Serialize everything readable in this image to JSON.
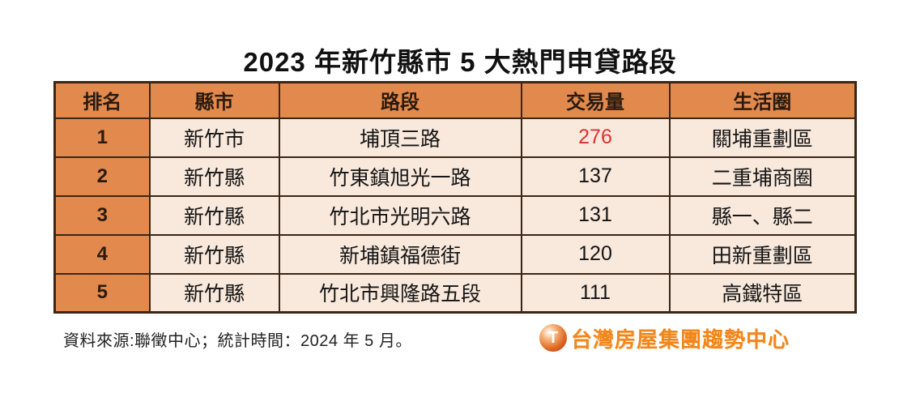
{
  "title": "2023 年新竹縣市 5 大熱門申貸路段",
  "table": {
    "headers": [
      "排名",
      "縣市",
      "路段",
      "交易量",
      "生活圈"
    ],
    "rows": [
      {
        "rank": "1",
        "county": "新竹市",
        "road": "埔頂三路",
        "volume": "276",
        "area": "關埔重劃區",
        "volume_highlight": true
      },
      {
        "rank": "2",
        "county": "新竹縣",
        "road": "竹東鎮旭光一路",
        "volume": "137",
        "area": "二重埔商圈",
        "volume_highlight": false
      },
      {
        "rank": "3",
        "county": "新竹縣",
        "road": "竹北市光明六路",
        "volume": "131",
        "area": "縣一、縣二",
        "volume_highlight": false
      },
      {
        "rank": "4",
        "county": "新竹縣",
        "road": "新埔鎮福德街",
        "volume": "120",
        "area": "田新重劃區",
        "volume_highlight": false
      },
      {
        "rank": "5",
        "county": "新竹縣",
        "road": "竹北市興隆路五段",
        "volume": "111",
        "area": "高鐵特區",
        "volume_highlight": false
      }
    ]
  },
  "footer": {
    "source": "資料來源:聯徵中心；統計時間：2024 年 5 月。",
    "logo_text": "台灣房屋集團趨勢中心",
    "logo_icon_letter": "T"
  },
  "colors": {
    "header_bg": "#e28a4d",
    "cell_bg": "#f9e9dc",
    "border": "#3a2617",
    "highlight_red": "#df3030",
    "logo_orange": "#f0861c"
  },
  "chart_data": {
    "type": "table",
    "title": "2023 年新竹縣市 5 大熱門申貸路段",
    "columns": [
      "排名",
      "縣市",
      "路段",
      "交易量",
      "生活圈"
    ],
    "rows": [
      [
        "1",
        "新竹市",
        "埔頂三路",
        276,
        "關埔重劃區"
      ],
      [
        "2",
        "新竹縣",
        "竹東鎮旭光一路",
        137,
        "二重埔商圈"
      ],
      [
        "3",
        "新竹縣",
        "竹北市光明六路",
        131,
        "縣一、縣二"
      ],
      [
        "4",
        "新竹縣",
        "新埔鎮福德街",
        120,
        "田新重劃區"
      ],
      [
        "5",
        "新竹縣",
        "竹北市興隆路五段",
        111,
        "高鐵特區"
      ]
    ],
    "notes": "交易量 of rank 1 (276) rendered in red; rank column and header row use orange fill",
    "source": "資料來源:聯徵中心；統計時間：2024 年 5 月。"
  }
}
